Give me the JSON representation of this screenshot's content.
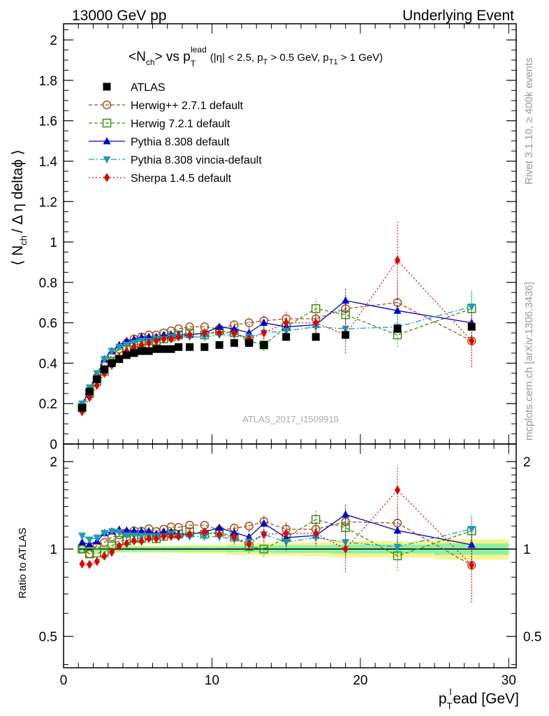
{
  "header": {
    "left": "13000 GeV pp",
    "right": "Underlying Event"
  },
  "side": {
    "rivet": "Rivet 3.1.10, ≥ 400k events",
    "mcplots": "mcplots.cern.ch [arXiv:1306.3436]"
  },
  "chart_data": [
    {
      "type": "scatter",
      "title": "<N_ch> vs p_T^lead (|η| < 2.5, p_T > 0.5 GeV, p_T1 > 1 GeV)",
      "title_main": "<N",
      "title_main_sub": "ch",
      "title_vs": "> vs p",
      "title_vs_sub": "T",
      "title_vs_sup": "lead",
      "title_cuts": "(|η| < 2.5, p",
      "title_cuts_sub": "T",
      "title_cuts_mid": " > 0.5 GeV, p",
      "title_cuts_sub2": "T1",
      "title_cuts_end": " > 1 GeV)",
      "ylabel": "⟨ N_ch / Δη deltaφ ⟩",
      "ylabel_pre": "⟨ N",
      "ylabel_sub": "ch",
      "ylabel_post": "/ Δ η deltaϕ ⟩",
      "watermark": "ATLAS_2017_I1509919",
      "xlim": [
        0,
        30.5
      ],
      "ylim": [
        0,
        2.08
      ],
      "yticks": [
        "0",
        "0.2",
        "0.4",
        "0.6",
        "0.8",
        "1",
        "1.2",
        "1.4",
        "1.6",
        "1.8",
        "2"
      ],
      "legend_position": "top-left",
      "colors": {
        "atlas": "#000000",
        "herwigpp": "#a0521a",
        "herwig7": "#3c8c14",
        "pythia": "#0000cc",
        "vincia": "#1a9cbc",
        "sherpa": "#e00000"
      },
      "series": [
        {
          "name": "ATLAS",
          "key": "atlas",
          "x": [
            1.25,
            1.75,
            2.25,
            2.75,
            3.25,
            3.75,
            4.25,
            4.75,
            5.25,
            5.75,
            6.25,
            6.75,
            7.25,
            7.75,
            8.5,
            9.5,
            10.5,
            11.5,
            12.5,
            13.5,
            15.0,
            17.0,
            19.0,
            22.5,
            27.5
          ],
          "y": [
            0.18,
            0.26,
            0.32,
            0.37,
            0.4,
            0.42,
            0.44,
            0.45,
            0.46,
            0.46,
            0.47,
            0.47,
            0.47,
            0.48,
            0.48,
            0.48,
            0.49,
            0.5,
            0.5,
            0.49,
            0.53,
            0.53,
            0.54,
            0.57,
            0.58
          ]
        },
        {
          "name": "Herwig++ 2.7.1 default",
          "key": "herwigpp",
          "x": [
            1.25,
            1.75,
            2.25,
            2.75,
            3.25,
            3.75,
            4.25,
            4.75,
            5.25,
            5.75,
            6.25,
            6.75,
            7.25,
            7.75,
            8.5,
            9.5,
            10.5,
            11.5,
            12.5,
            13.5,
            15.0,
            17.0,
            19.0,
            22.5,
            27.5
          ],
          "y": [
            0.18,
            0.25,
            0.33,
            0.39,
            0.44,
            0.47,
            0.5,
            0.52,
            0.53,
            0.54,
            0.54,
            0.55,
            0.56,
            0.57,
            0.58,
            0.58,
            0.57,
            0.59,
            0.6,
            0.61,
            0.62,
            0.62,
            0.67,
            0.7,
            0.51
          ],
          "err": [
            0.005,
            0.005,
            0.005,
            0.005,
            0.006,
            0.006,
            0.006,
            0.007,
            0.007,
            0.008,
            0.008,
            0.009,
            0.01,
            0.01,
            0.012,
            0.014,
            0.018,
            0.022,
            0.026,
            0.03,
            0.04,
            0.05,
            0.07,
            0.1,
            0.13
          ]
        },
        {
          "name": "Herwig 7.2.1 default",
          "key": "herwig7",
          "x": [
            1.25,
            1.75,
            2.25,
            2.75,
            3.25,
            3.75,
            4.25,
            4.75,
            5.25,
            5.75,
            6.25,
            6.75,
            7.25,
            7.75,
            8.5,
            9.5,
            10.5,
            11.5,
            12.5,
            13.5,
            15.0,
            17.0,
            19.0,
            22.5,
            27.5
          ],
          "y": [
            0.18,
            0.25,
            0.31,
            0.36,
            0.41,
            0.45,
            0.47,
            0.49,
            0.5,
            0.51,
            0.51,
            0.52,
            0.53,
            0.54,
            0.55,
            0.54,
            0.56,
            0.55,
            0.51,
            0.49,
            0.58,
            0.67,
            0.64,
            0.54,
            0.67
          ],
          "err": [
            0.005,
            0.005,
            0.005,
            0.005,
            0.006,
            0.006,
            0.006,
            0.007,
            0.007,
            0.008,
            0.008,
            0.009,
            0.01,
            0.01,
            0.012,
            0.014,
            0.018,
            0.022,
            0.026,
            0.03,
            0.04,
            0.05,
            0.06,
            0.06,
            0.08
          ]
        },
        {
          "name": "Pythia 8.308 default",
          "key": "pythia",
          "x": [
            1.25,
            1.75,
            2.25,
            2.75,
            3.25,
            3.75,
            4.25,
            4.75,
            5.25,
            5.75,
            6.25,
            6.75,
            7.25,
            7.75,
            8.5,
            9.5,
            10.5,
            11.5,
            12.5,
            13.5,
            15.0,
            17.0,
            19.0,
            22.5,
            27.5
          ],
          "y": [
            0.19,
            0.27,
            0.34,
            0.42,
            0.46,
            0.49,
            0.51,
            0.52,
            0.53,
            0.53,
            0.53,
            0.54,
            0.54,
            0.54,
            0.54,
            0.55,
            0.58,
            0.57,
            0.55,
            0.6,
            0.58,
            0.59,
            0.71,
            0.66,
            0.6
          ],
          "err": [
            0.005,
            0.005,
            0.005,
            0.005,
            0.006,
            0.006,
            0.006,
            0.007,
            0.007,
            0.008,
            0.008,
            0.009,
            0.01,
            0.01,
            0.012,
            0.014,
            0.018,
            0.022,
            0.026,
            0.03,
            0.04,
            0.04,
            0.06,
            0.06,
            0.08
          ]
        },
        {
          "name": "Pythia 8.308 vincia-default",
          "key": "vincia",
          "x": [
            1.25,
            1.75,
            2.25,
            2.75,
            3.25,
            3.75,
            4.25,
            4.75,
            5.25,
            5.75,
            6.25,
            6.75,
            7.25,
            7.75,
            8.5,
            9.5,
            10.5,
            11.5,
            12.5,
            13.5,
            15.0,
            17.0,
            19.0,
            22.5,
            27.5
          ],
          "y": [
            0.2,
            0.28,
            0.35,
            0.42,
            0.46,
            0.48,
            0.49,
            0.5,
            0.51,
            0.51,
            0.52,
            0.52,
            0.53,
            0.53,
            0.53,
            0.53,
            0.54,
            0.54,
            0.53,
            0.55,
            0.56,
            0.58,
            0.57,
            0.58,
            0.68
          ],
          "err": [
            0.005,
            0.005,
            0.005,
            0.005,
            0.006,
            0.006,
            0.006,
            0.007,
            0.007,
            0.008,
            0.008,
            0.009,
            0.01,
            0.01,
            0.012,
            0.014,
            0.018,
            0.022,
            0.026,
            0.03,
            0.04,
            0.04,
            0.06,
            0.06,
            0.08
          ]
        },
        {
          "name": "Sherpa 1.4.5 default",
          "key": "sherpa",
          "x": [
            1.25,
            1.75,
            2.25,
            2.75,
            3.25,
            3.75,
            4.25,
            4.75,
            5.25,
            5.75,
            6.25,
            6.75,
            7.25,
            7.75,
            8.5,
            9.5,
            10.5,
            11.5,
            12.5,
            13.5,
            15.0,
            17.0,
            19.0,
            22.5,
            27.5
          ],
          "y": [
            0.16,
            0.23,
            0.29,
            0.35,
            0.39,
            0.43,
            0.46,
            0.48,
            0.49,
            0.5,
            0.51,
            0.52,
            0.52,
            0.53,
            0.54,
            0.55,
            0.55,
            0.55,
            0.52,
            0.55,
            0.6,
            0.6,
            0.54,
            0.91,
            0.51
          ],
          "err": [
            0.005,
            0.005,
            0.005,
            0.005,
            0.006,
            0.006,
            0.006,
            0.007,
            0.007,
            0.008,
            0.008,
            0.009,
            0.01,
            0.01,
            0.012,
            0.014,
            0.018,
            0.022,
            0.026,
            0.03,
            0.05,
            0.05,
            0.09,
            0.19,
            0.13
          ]
        }
      ]
    },
    {
      "type": "scatter",
      "ylabel": "Ratio to ATLAS",
      "xlabel": "p_T^lead [GeV]",
      "xlabel_main": "p",
      "xlabel_sub": "T",
      "xlabel_sup": "l",
      "xlabel_rest": "ead [GeV]",
      "xlim": [
        0,
        30.5
      ],
      "ylim": [
        0.39,
        2.3
      ],
      "yscale": "log",
      "xticks": [
        "0",
        "10",
        "20",
        "30"
      ],
      "yticks": [
        "0.5",
        "1",
        "2"
      ],
      "band_edges": [
        1.0,
        1.5,
        2.0,
        2.5,
        3.0,
        3.5,
        4.0,
        4.5,
        5.0,
        5.5,
        6.0,
        6.5,
        7.0,
        7.5,
        8.0,
        9.0,
        10.0,
        11.0,
        12.0,
        13.0,
        14.0,
        16.0,
        18.0,
        20.0,
        25.0,
        30.0
      ],
      "band_inner": [
        0.02,
        0.02,
        0.02,
        0.02,
        0.02,
        0.02,
        0.02,
        0.02,
        0.02,
        0.02,
        0.02,
        0.02,
        0.02,
        0.02,
        0.02,
        0.02,
        0.02,
        0.025,
        0.025,
        0.025,
        0.03,
        0.03,
        0.035,
        0.035,
        0.045
      ],
      "band_outer": [
        0.03,
        0.03,
        0.03,
        0.03,
        0.03,
        0.03,
        0.03,
        0.03,
        0.03,
        0.03,
        0.03,
        0.03,
        0.03,
        0.03,
        0.035,
        0.035,
        0.035,
        0.045,
        0.045,
        0.05,
        0.05,
        0.055,
        0.065,
        0.065,
        0.08
      ]
    }
  ]
}
